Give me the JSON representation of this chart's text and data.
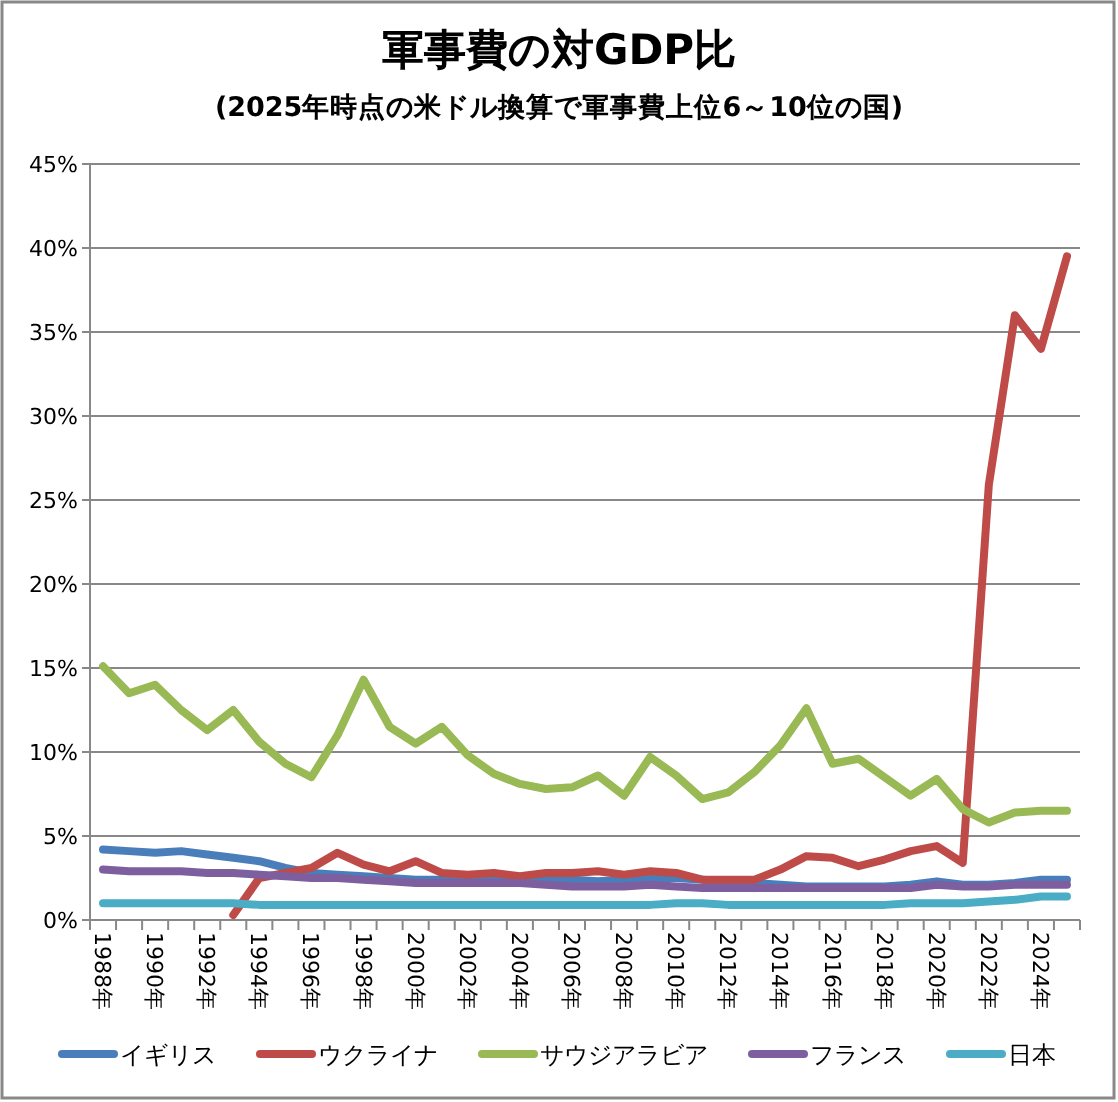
{
  "chart_data": {
    "type": "line",
    "title": "軍事費の対GDP比",
    "subtitle": "(2025年時点の米ドル換算で軍事費上位6～10位の国)",
    "categories": [
      "1988年",
      null,
      "1990年",
      null,
      "1992年",
      null,
      "1994年",
      null,
      "1996年",
      null,
      "1998年",
      null,
      "2000年",
      null,
      "2002年",
      null,
      "2004年",
      null,
      "2006年",
      null,
      "2008年",
      null,
      "2010年",
      null,
      "2012年",
      null,
      "2014年",
      null,
      "2016年",
      null,
      "2018年",
      null,
      "2020年",
      null,
      "2022年",
      null,
      "2024年",
      null
    ],
    "series": [
      {
        "name": "イギリス",
        "color": "#4a7ebb",
        "values": [
          4.2,
          4.1,
          4.0,
          4.1,
          3.9,
          3.7,
          3.5,
          3.1,
          2.8,
          2.7,
          2.6,
          2.5,
          2.4,
          2.4,
          2.5,
          2.5,
          2.5,
          2.4,
          2.4,
          2.3,
          2.4,
          2.5,
          2.5,
          2.4,
          2.3,
          2.2,
          2.1,
          2.0,
          2.0,
          2.0,
          2.0,
          2.1,
          2.3,
          2.1,
          2.1,
          2.2,
          2.4,
          2.4
        ]
      },
      {
        "name": "ウクライナ",
        "color": "#be4b48",
        "values": [
          null,
          null,
          null,
          null,
          null,
          0.3,
          2.5,
          2.8,
          3.1,
          4.0,
          3.3,
          2.9,
          3.5,
          2.8,
          2.7,
          2.8,
          2.6,
          2.8,
          2.8,
          2.9,
          2.7,
          2.9,
          2.8,
          2.4,
          2.4,
          2.4,
          3.0,
          3.8,
          3.7,
          3.2,
          3.6,
          4.1,
          4.4,
          3.4,
          25.9,
          36.0,
          34.0,
          39.5
        ]
      },
      {
        "name": "サウジアラビア",
        "color": "#98b954",
        "values": [
          15.1,
          13.5,
          14.0,
          12.5,
          11.3,
          12.5,
          10.6,
          9.3,
          8.5,
          11.0,
          14.3,
          11.5,
          10.5,
          11.5,
          9.8,
          8.7,
          8.1,
          7.8,
          7.9,
          8.6,
          7.4,
          9.7,
          8.6,
          7.2,
          7.6,
          8.8,
          10.4,
          12.6,
          9.3,
          9.6,
          8.5,
          7.4,
          8.4,
          6.6,
          5.8,
          6.4,
          6.5,
          6.5
        ]
      },
      {
        "name": "フランス",
        "color": "#7d5fa0",
        "values": [
          3.0,
          2.9,
          2.9,
          2.9,
          2.8,
          2.8,
          2.7,
          2.6,
          2.5,
          2.5,
          2.4,
          2.3,
          2.2,
          2.2,
          2.2,
          2.2,
          2.2,
          2.1,
          2.0,
          2.0,
          2.0,
          2.1,
          2.0,
          1.9,
          1.9,
          1.9,
          1.9,
          1.9,
          1.9,
          1.9,
          1.9,
          1.9,
          2.1,
          2.0,
          2.0,
          2.1,
          2.1,
          2.1
        ]
      },
      {
        "name": "日本",
        "color": "#4bacc6",
        "values": [
          1.0,
          1.0,
          1.0,
          1.0,
          1.0,
          1.0,
          0.9,
          0.9,
          0.9,
          0.9,
          0.9,
          0.9,
          0.9,
          0.9,
          0.9,
          0.9,
          0.9,
          0.9,
          0.9,
          0.9,
          0.9,
          0.9,
          1.0,
          1.0,
          0.9,
          0.9,
          0.9,
          0.9,
          0.9,
          0.9,
          0.9,
          1.0,
          1.0,
          1.0,
          1.1,
          1.2,
          1.4,
          1.4
        ]
      }
    ],
    "ylim": [
      0,
      45
    ],
    "yticks": [
      {
        "value": 0,
        "label": "0%"
      },
      {
        "value": 5,
        "label": "5%"
      },
      {
        "value": 10,
        "label": "10%"
      },
      {
        "value": 15,
        "label": "15%"
      },
      {
        "value": 20,
        "label": "20%"
      },
      {
        "value": 25,
        "label": "25%"
      },
      {
        "value": 30,
        "label": "30%"
      },
      {
        "value": 35,
        "label": "35%"
      },
      {
        "value": 40,
        "label": "40%"
      },
      {
        "value": 45,
        "label": "45%"
      }
    ],
    "grid": "y",
    "legend": "bottom"
  }
}
